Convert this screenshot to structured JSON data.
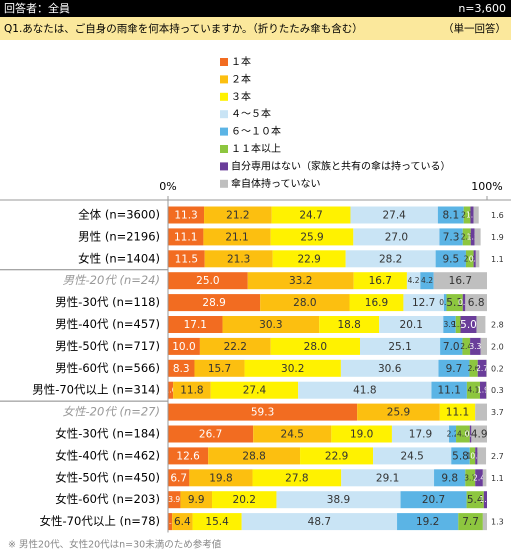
{
  "header": {
    "respondents": "回答者：全員",
    "n": "n=3,600"
  },
  "question": {
    "text": "Q1.あなたは、ご自身の雨傘を何本持っていますか。（折りたたみ傘も含む）",
    "answer_type": "（単一回答）"
  },
  "chart_data": {
    "type": "stacked_barh",
    "categories": [
      "全体 (n=3600)",
      "男性 (n=2196)",
      "女性 (n=1404)",
      "男性-20代 (n=24)",
      "男性-30代 (n=118)",
      "男性-40代 (n=457)",
      "男性-50代 (n=717)",
      "男性-60代 (n=566)",
      "男性-70代以上 (n=314)",
      "女性-20代 (n=27)",
      "女性-30代 (n=184)",
      "女性-40代 (n=462)",
      "女性-50代 (n=450)",
      "女性-60代 (n=203)",
      "女性-70代以上 (n=78)"
    ],
    "xlim": [
      0,
      100
    ],
    "xticks": [
      {
        "value": 0,
        "label": "0%"
      },
      {
        "value": 100,
        "label": "100%"
      }
    ],
    "series": [
      {
        "name": "１本",
        "color": "#f26c21",
        "values": [
          11.3,
          11.1,
          11.5,
          25.0,
          28.9,
          17.1,
          10.0,
          8.3,
          1.6,
          59.3,
          26.7,
          12.6,
          6.7,
          3.9,
          1.3
        ],
        "value_labels": [
          "11.3",
          "11.1",
          "11.5",
          "25.0",
          "28.9",
          "17.1",
          "10.0",
          "8.3",
          "1.6",
          "59.3",
          "26.7",
          "12.6",
          "6.7",
          "3.9",
          "1.3"
        ]
      },
      {
        "name": "２本",
        "color": "#fcbf10",
        "values": [
          21.2,
          21.1,
          21.3,
          33.2,
          28.0,
          30.3,
          22.2,
          15.7,
          11.8,
          25.9,
          24.5,
          28.8,
          19.8,
          9.9,
          6.4
        ],
        "value_labels": [
          "21.2",
          "21.1",
          "21.3",
          "33.2",
          "28.0",
          "30.3",
          "22.2",
          "15.7",
          "11.8",
          "25.9",
          "24.5",
          "28.8",
          "19.8",
          "9.9",
          "6.4"
        ]
      },
      {
        "name": "３本",
        "color": "#fff200",
        "values": [
          24.7,
          25.9,
          22.9,
          16.7,
          16.9,
          18.8,
          28.0,
          30.2,
          27.4,
          11.1,
          19.0,
          22.9,
          27.8,
          20.2,
          15.4
        ],
        "value_labels": [
          "24.7",
          "25.9",
          "22.9",
          "16.7",
          "16.9",
          "18.8",
          "28.0",
          "30.2",
          "27.4",
          "11.1",
          "19.0",
          "22.9",
          "27.8",
          "20.2",
          "15.4"
        ]
      },
      {
        "name": "４～５本",
        "color": "#c9e4f5",
        "values": [
          27.4,
          27.0,
          28.2,
          4.2,
          12.7,
          20.1,
          25.1,
          30.6,
          41.8,
          0,
          17.9,
          24.5,
          29.1,
          38.9,
          48.7
        ],
        "value_labels": [
          "27.4",
          "27.0",
          "28.2",
          "4.2",
          "12.7",
          "20.1",
          "25.1",
          "30.6",
          "41.8",
          null,
          "17.9",
          "24.5",
          "29.1",
          "38.9",
          "48.7"
        ]
      },
      {
        "name": "６～１０本",
        "color": "#5bb4e5",
        "values": [
          8.1,
          7.3,
          9.5,
          4.2,
          0.8,
          3.9,
          7.0,
          9.7,
          11.1,
          0,
          2.2,
          5.8,
          9.8,
          20.7,
          19.2
        ],
        "value_labels": [
          "8.1",
          "7.3",
          "9.5",
          "4.2",
          "0.8",
          "3.9",
          "7.0",
          "9.7",
          "11.1",
          null,
          "2.2",
          "5.8",
          "9.8",
          "20.7",
          "19.2"
        ]
      },
      {
        "name": "１１本以上",
        "color": "#8dc63f",
        "values": [
          2.1,
          2.5,
          2.4,
          0,
          5.1,
          1.5,
          2.4,
          2.6,
          4.1,
          0,
          4.3,
          1.7,
          3.1,
          5.4,
          7.7
        ],
        "value_labels": [
          "2.1",
          "2.5",
          "2.4",
          null,
          "5.1",
          "1.5",
          "2.4",
          "2.6",
          "4.1",
          null,
          "4.3",
          "1.7",
          "3.1",
          "5.4",
          "7.7"
        ]
      },
      {
        "name": "自分専用はない（家族と共有の傘は持っている）",
        "color": "#6a3d9a",
        "values": [
          1.0,
          1.2,
          0.7,
          0,
          0.8,
          5.0,
          3.3,
          2.7,
          1.9,
          0,
          0.5,
          0.7,
          2.4,
          1.0,
          0
        ],
        "value_labels": [
          "1.0",
          "1.2",
          "0.7",
          null,
          "0.8",
          "5.0",
          "3.3",
          "2.7",
          "1.9",
          null,
          "0.5",
          "0.7",
          "2.4",
          "1.0",
          null
        ]
      },
      {
        "name": "傘自体持っていない",
        "color": "#bfbfbf",
        "values": [
          1.6,
          1.9,
          1.1,
          16.7,
          6.8,
          2.8,
          2.0,
          0.2,
          0.3,
          3.7,
          4.9,
          2.7,
          1.1,
          0,
          1.3
        ],
        "value_labels": [
          "1.6",
          "1.9",
          "1.1",
          "16.7",
          "6.8",
          "2.8",
          "2.0",
          "0.2",
          "0.3",
          "3.7",
          "4.9",
          "2.7",
          "1.1",
          null,
          "1.3"
        ]
      }
    ]
  },
  "footnote": "※ 男性20代、女性20代はn=30未満のため参考値"
}
